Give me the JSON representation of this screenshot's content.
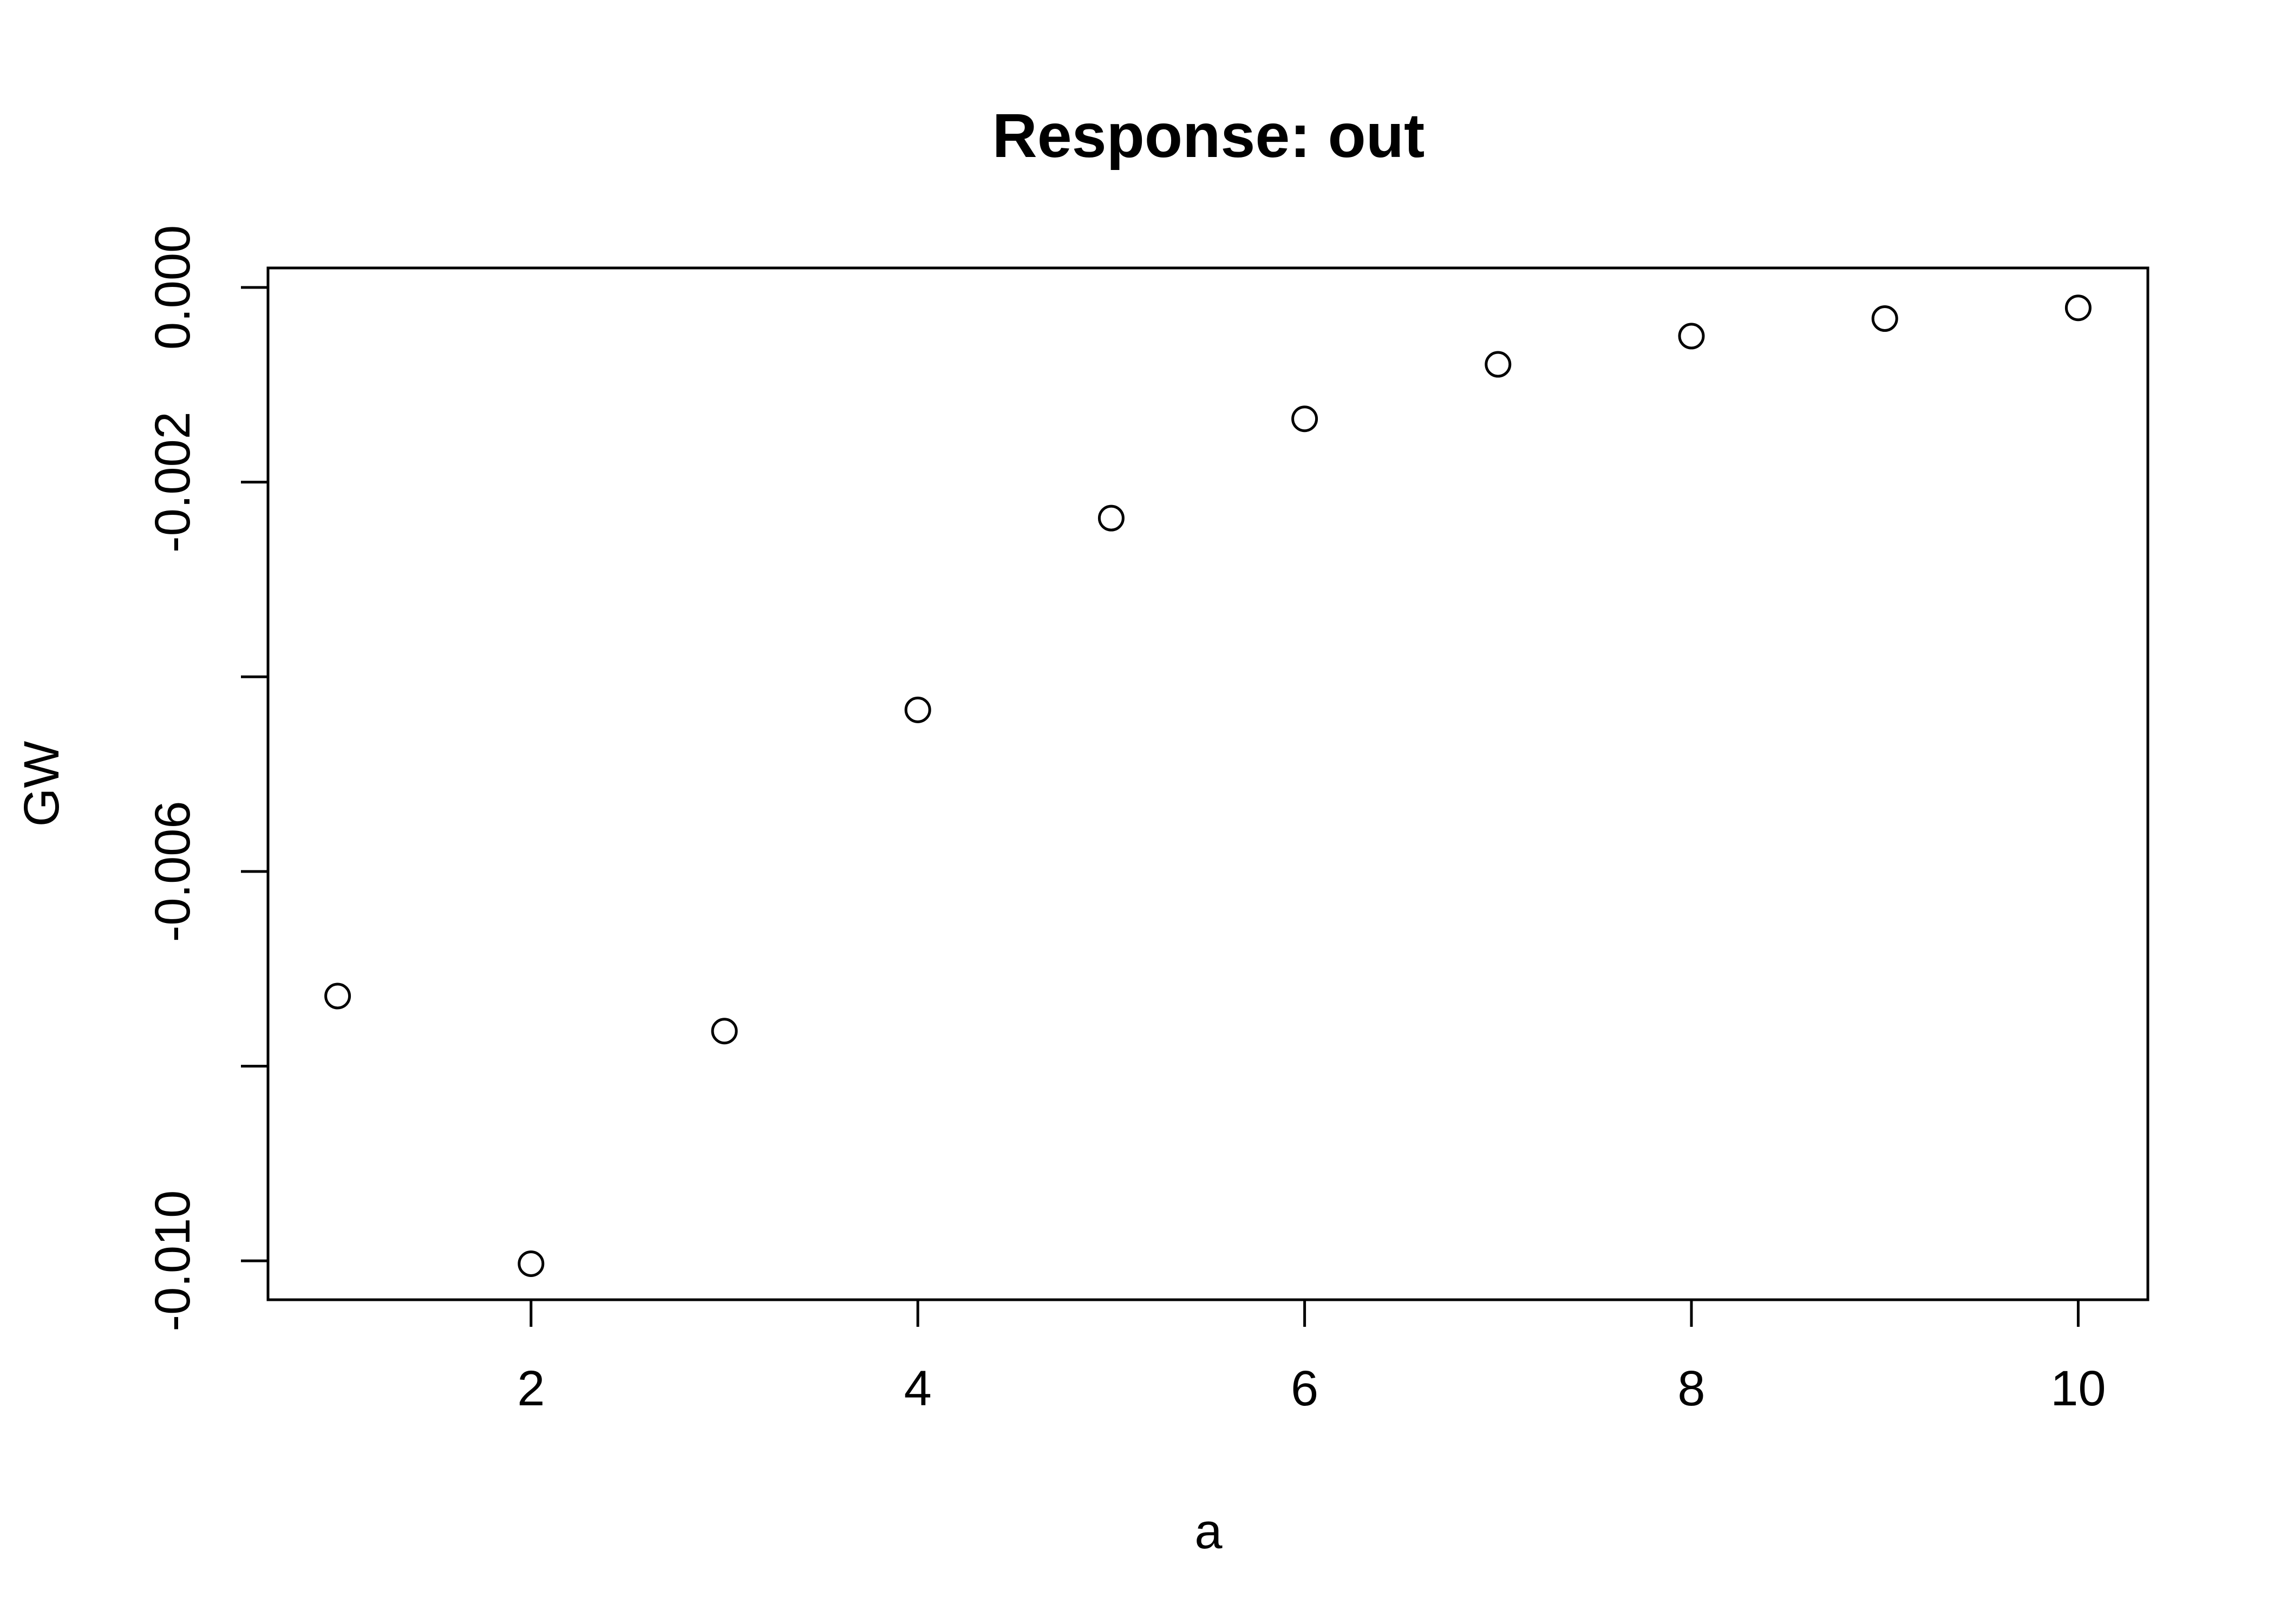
{
  "chart_data": {
    "type": "scatter",
    "title": "Response: out",
    "xlabel": "a",
    "ylabel": "GW",
    "x": [
      1,
      2,
      3,
      4,
      5,
      6,
      7,
      8,
      9,
      10
    ],
    "y": [
      -0.00728,
      -0.01003,
      -0.00764,
      -0.00434,
      -0.00237,
      -0.00135,
      -0.00079,
      -0.0005,
      -0.00032,
      -0.00021
    ],
    "xlim": [
      0.64,
      10.36
    ],
    "ylim": [
      -0.0104,
      0.0002
    ],
    "x_ticks": [
      2,
      4,
      6,
      8,
      10
    ],
    "x_tick_labels": [
      "2",
      "4",
      "6",
      "8",
      "10"
    ],
    "y_ticks": [
      0,
      -0.002,
      -0.004,
      -0.006,
      -0.008,
      -0.01
    ],
    "y_tick_labels": [
      "0.000",
      "-0.002",
      "",
      "-0.006",
      "",
      "-0.010"
    ],
    "marker": "open-circle",
    "grid": false,
    "legend": "none"
  }
}
